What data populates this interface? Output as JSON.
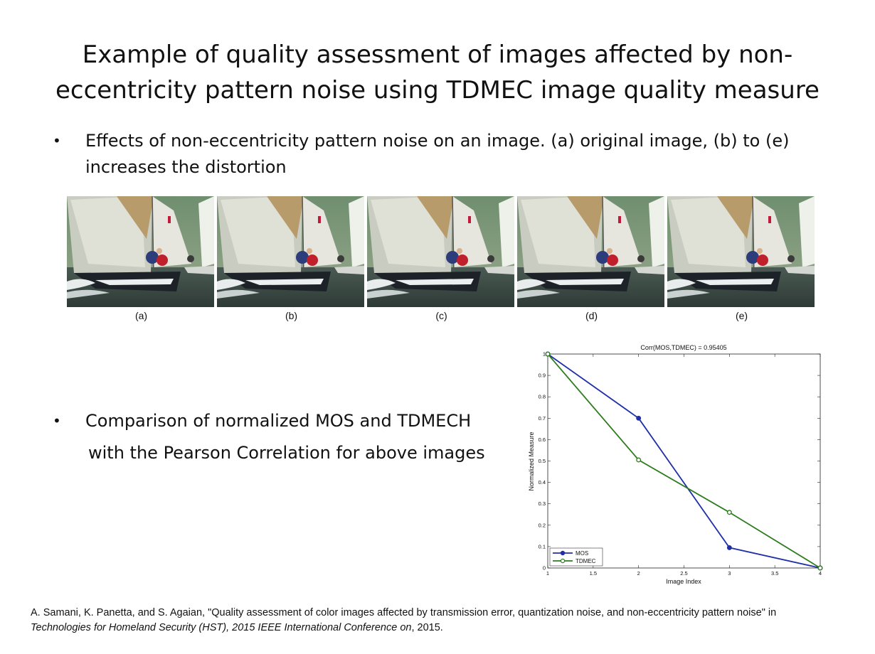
{
  "title": "Example of quality assessment of images affected by non-eccentricity pattern noise using TDMEC image quality measure",
  "bullet1": "Effects of non-eccentricity pattern noise on an image. (a) original image, (b) to (e) increases the distortion",
  "bullet2_line1": "Comparison of normalized MOS and TDMECH",
  "bullet2_line2": "with the Pearson Correlation for above images",
  "bullet_glyph": "•",
  "captions": [
    "(a)",
    "(b)",
    "(c)",
    "(d)",
    "(e)"
  ],
  "chart_data": {
    "type": "line",
    "title": "Corr(MOS,TDMEC) = 0.95405",
    "xlabel": "Image Index",
    "ylabel": "Normalized Measure",
    "xlim": [
      1,
      4
    ],
    "ylim": [
      0,
      1
    ],
    "xticks": [
      "1",
      "1.5",
      "2",
      "2.5",
      "3",
      "3.5",
      "4"
    ],
    "yticks": [
      "0",
      "0.1",
      "0.2",
      "0.3",
      "0.4",
      "0.5",
      "0.6",
      "0.7",
      "0.8",
      "0.9",
      "1"
    ],
    "x": [
      1,
      2,
      3,
      4
    ],
    "series": [
      {
        "name": "MOS",
        "values": [
          1,
          0.7,
          0.095,
          0
        ],
        "color": "#1f2fa8",
        "marker": "filled-circle"
      },
      {
        "name": "TDMEC",
        "values": [
          1,
          0.505,
          0.26,
          0
        ],
        "color": "#2e7d1f",
        "marker": "open-circle"
      }
    ],
    "legend": "bottom-left",
    "grid": false
  },
  "reference_line1": "A. Samani, K. Panetta, and S. Agaian, \"Quality assessment of color images affected by transmission error, quantization noise, and non-eccentricity pattern noise\" in",
  "reference_venue": "Technologies for Homeland Security (HST), 2015 IEEE International Conference on",
  "reference_year": ", 2015."
}
